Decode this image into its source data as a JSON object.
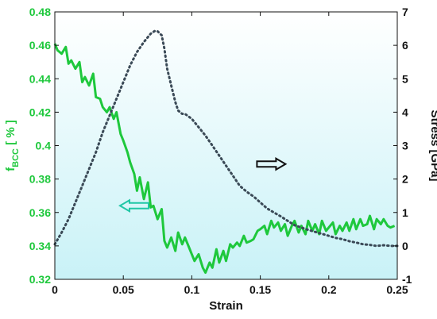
{
  "chart_data": {
    "type": "line",
    "xlabel": "Strain",
    "ylabel_left": {
      "main": "f",
      "sub": "BCC",
      "rest": " [ % ]"
    },
    "ylabel_right": "Stress [GPa]",
    "xlim": [
      0,
      0.25
    ],
    "ylim_left": [
      0.32,
      0.48
    ],
    "ylim_right": [
      -1,
      7
    ],
    "x_ticks": [
      "0",
      "0.05",
      "0.1",
      "0.15",
      "0.2",
      "0.25"
    ],
    "y_ticks_left": [
      "0.32",
      "0.34",
      "0.36",
      "0.38",
      "0.4",
      "0.42",
      "0.44",
      "0.46",
      "0.48"
    ],
    "y_ticks_right": [
      "-1",
      "0",
      "1",
      "2",
      "3",
      "4",
      "5",
      "6",
      "7"
    ],
    "grid": false,
    "background_gradient": [
      "#c9f2f7",
      "#ffffff"
    ],
    "colors": {
      "fbcc": "#1ec83c",
      "stress": "#3b4a57",
      "left_arrow": "#21c7a6",
      "right_arrow": "#111111"
    },
    "series": [
      {
        "name": "fBCC",
        "axis": "left",
        "style": "solid",
        "x": [
          0,
          0.002,
          0.005,
          0.008,
          0.01,
          0.012,
          0.015,
          0.018,
          0.02,
          0.022,
          0.025,
          0.028,
          0.03,
          0.033,
          0.035,
          0.038,
          0.04,
          0.043,
          0.045,
          0.048,
          0.05,
          0.053,
          0.055,
          0.058,
          0.06,
          0.062,
          0.065,
          0.068,
          0.07,
          0.072,
          0.075,
          0.078,
          0.08,
          0.082,
          0.085,
          0.088,
          0.09,
          0.093,
          0.095,
          0.098,
          0.1,
          0.102,
          0.105,
          0.108,
          0.11,
          0.113,
          0.115,
          0.118,
          0.12,
          0.123,
          0.125,
          0.128,
          0.13,
          0.133,
          0.135,
          0.138,
          0.14,
          0.143,
          0.145,
          0.148,
          0.15,
          0.153,
          0.155,
          0.158,
          0.16,
          0.163,
          0.165,
          0.168,
          0.17,
          0.173,
          0.175,
          0.178,
          0.18,
          0.183,
          0.185,
          0.188,
          0.19,
          0.193,
          0.195,
          0.198,
          0.2,
          0.203,
          0.205,
          0.208,
          0.21,
          0.213,
          0.215,
          0.218,
          0.22,
          0.223,
          0.225,
          0.228,
          0.23,
          0.233,
          0.235,
          0.238,
          0.24,
          0.243,
          0.245,
          0.248
        ],
        "y": [
          0.461,
          0.457,
          0.455,
          0.459,
          0.449,
          0.451,
          0.446,
          0.45,
          0.438,
          0.441,
          0.436,
          0.443,
          0.429,
          0.428,
          0.423,
          0.42,
          0.423,
          0.416,
          0.42,
          0.407,
          0.403,
          0.396,
          0.39,
          0.383,
          0.373,
          0.381,
          0.368,
          0.378,
          0.363,
          0.364,
          0.356,
          0.362,
          0.343,
          0.339,
          0.345,
          0.337,
          0.348,
          0.341,
          0.345,
          0.339,
          0.335,
          0.331,
          0.335,
          0.327,
          0.324,
          0.33,
          0.327,
          0.338,
          0.33,
          0.337,
          0.331,
          0.341,
          0.339,
          0.342,
          0.34,
          0.346,
          0.342,
          0.343,
          0.344,
          0.349,
          0.35,
          0.352,
          0.347,
          0.355,
          0.351,
          0.354,
          0.349,
          0.353,
          0.346,
          0.352,
          0.355,
          0.348,
          0.352,
          0.347,
          0.355,
          0.349,
          0.353,
          0.347,
          0.355,
          0.349,
          0.351,
          0.354,
          0.347,
          0.352,
          0.349,
          0.354,
          0.349,
          0.356,
          0.35,
          0.356,
          0.352,
          0.353,
          0.358,
          0.35,
          0.356,
          0.353,
          0.356,
          0.352,
          0.351,
          0.352
        ]
      },
      {
        "name": "Stress",
        "axis": "right",
        "style": "dotted",
        "x": [
          0,
          0.005,
          0.01,
          0.015,
          0.02,
          0.025,
          0.03,
          0.035,
          0.04,
          0.045,
          0.05,
          0.055,
          0.06,
          0.065,
          0.07,
          0.073,
          0.075,
          0.078,
          0.08,
          0.082,
          0.085,
          0.088,
          0.09,
          0.093,
          0.095,
          0.1,
          0.105,
          0.11,
          0.115,
          0.12,
          0.125,
          0.13,
          0.135,
          0.14,
          0.145,
          0.15,
          0.155,
          0.16,
          0.165,
          0.17,
          0.175,
          0.18,
          0.185,
          0.19,
          0.195,
          0.2,
          0.205,
          0.21,
          0.215,
          0.22,
          0.225,
          0.23,
          0.235,
          0.24,
          0.245,
          0.25
        ],
        "y": [
          0.05,
          0.4,
          0.8,
          1.3,
          1.8,
          2.3,
          2.8,
          3.4,
          3.9,
          4.4,
          4.9,
          5.4,
          5.8,
          6.1,
          6.35,
          6.43,
          6.42,
          6.3,
          5.9,
          5.3,
          4.8,
          4.3,
          4.05,
          3.95,
          3.95,
          3.8,
          3.55,
          3.3,
          3.0,
          2.7,
          2.4,
          2.1,
          1.8,
          1.62,
          1.48,
          1.3,
          1.12,
          1.0,
          0.88,
          0.75,
          0.62,
          0.55,
          0.48,
          0.42,
          0.36,
          0.3,
          0.24,
          0.2,
          0.14,
          0.1,
          0.05,
          0.03,
          0.0,
          0.02,
          0.0,
          0.0
        ]
      }
    ],
    "annotations": [
      {
        "kind": "arrow",
        "direction": "left",
        "points_to_axis": "left",
        "x": 0.058,
        "y_right": 1.2
      },
      {
        "kind": "arrow",
        "direction": "right",
        "points_to_axis": "right",
        "x": 0.158,
        "y_right": 2.45
      }
    ]
  }
}
